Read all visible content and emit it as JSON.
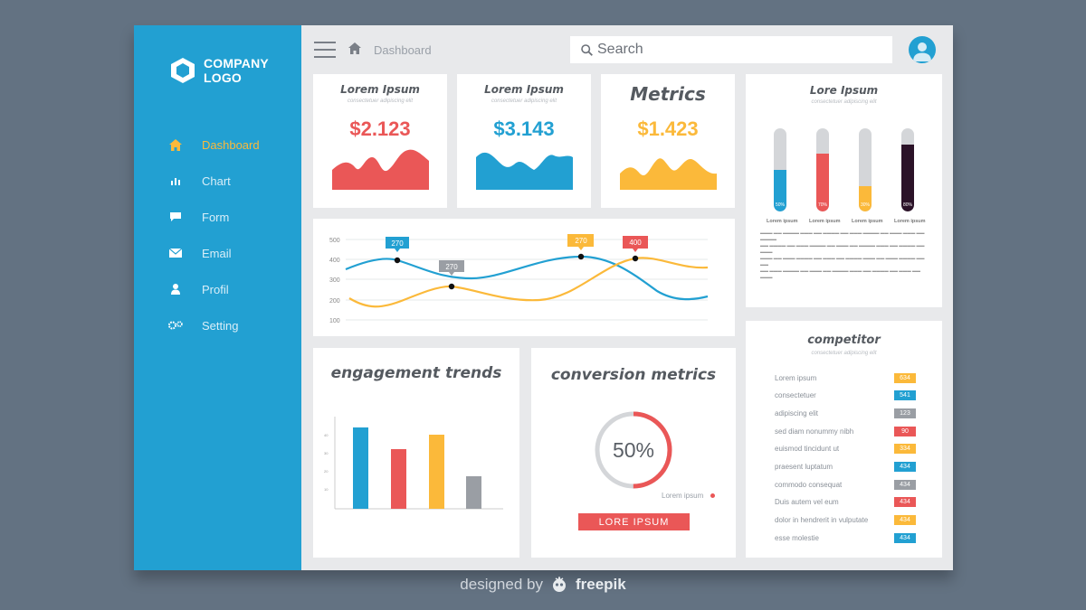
{
  "logo": {
    "line1": "COMPANY",
    "line2": "LOGO"
  },
  "sidebar": {
    "items": [
      {
        "label": "Dashboard",
        "icon": "home-icon",
        "active": true
      },
      {
        "label": "Chart",
        "icon": "chart-icon"
      },
      {
        "label": "Form",
        "icon": "form-icon"
      },
      {
        "label": "Email",
        "icon": "email-icon"
      },
      {
        "label": "Profil",
        "icon": "user-icon"
      },
      {
        "label": "Setting",
        "icon": "gear-icon"
      }
    ]
  },
  "header": {
    "breadcrumb": "Dashboard",
    "search_placeholder": "Search"
  },
  "kpis": [
    {
      "title": "Lorem Ipsum",
      "subtitle": "consectetuer adipiscing elit",
      "value": "$2.123",
      "color": "#ea5757"
    },
    {
      "title": "Lorem Ipsum",
      "subtitle": "consectetuer adipiscing elit",
      "value": "$3.143",
      "color": "#22a0d2"
    },
    {
      "title": "Metrics",
      "subtitle": "",
      "value": "$1.423",
      "color": "#fbb93a"
    }
  ],
  "line_chart": {
    "y_ticks": [
      "500",
      "400",
      "300",
      "200",
      "100"
    ],
    "callouts": [
      {
        "label": "270",
        "color": "#22a0d2"
      },
      {
        "label": "270",
        "color": "#9a9ea4"
      },
      {
        "label": "270",
        "color": "#fbb93a"
      },
      {
        "label": "400",
        "color": "#ea5757"
      }
    ]
  },
  "progress_card": {
    "title": "Lore Ipsum",
    "subtitle": "consectetuer adipiscing elit",
    "bars": [
      {
        "value": 50,
        "label": "50%",
        "color": "#22a0d2",
        "caption": "Lorem ipsum"
      },
      {
        "value": 70,
        "label": "70%",
        "color": "#ea5757",
        "caption": "Lorem ipsum"
      },
      {
        "value": 30,
        "label": "30%",
        "color": "#fbb93a",
        "caption": "Lorem ipsum"
      },
      {
        "value": 80,
        "label": "80%",
        "color": "#2b1228",
        "caption": "Lorem ipsum"
      }
    ]
  },
  "engagement": {
    "title": "engagement trends",
    "bars": [
      {
        "value": 45,
        "color": "#22a0d2"
      },
      {
        "value": 33,
        "color": "#ea5757"
      },
      {
        "value": 41,
        "color": "#fbb93a"
      },
      {
        "value": 18,
        "color": "#9a9ea4"
      }
    ]
  },
  "conversion": {
    "title": "conversion metrics",
    "value": "50%",
    "fraction": 0.5,
    "legend": "Lorem ipsum",
    "button": "LORE IPSUM"
  },
  "competitor": {
    "title": "competitor",
    "subtitle": "consectetuer adipiscing elit",
    "rows": [
      {
        "label": "Lorem ipsum",
        "value": "634",
        "color": "#fbb93a"
      },
      {
        "label": "consectetuer",
        "value": "541",
        "color": "#22a0d2"
      },
      {
        "label": "adipiscing elit",
        "value": "123",
        "color": "#9a9ea4"
      },
      {
        "label": "sed diam nonummy nibh",
        "value": "90",
        "color": "#ea5757"
      },
      {
        "label": "euismod tincidunt ut",
        "value": "334",
        "color": "#fbb93a"
      },
      {
        "label": "praesent luptatum",
        "value": "434",
        "color": "#22a0d2"
      },
      {
        "label": "commodo consequat",
        "value": "434",
        "color": "#9a9ea4"
      },
      {
        "label": "Duis autem vel eum",
        "value": "434",
        "color": "#ea5757"
      },
      {
        "label": "dolor in hendrerit in vulputate",
        "value": "434",
        "color": "#fbb93a"
      },
      {
        "label": "esse molestie",
        "value": "434",
        "color": "#22a0d2"
      }
    ]
  },
  "footer": {
    "prefix": "designed by",
    "brand": "freepik"
  }
}
